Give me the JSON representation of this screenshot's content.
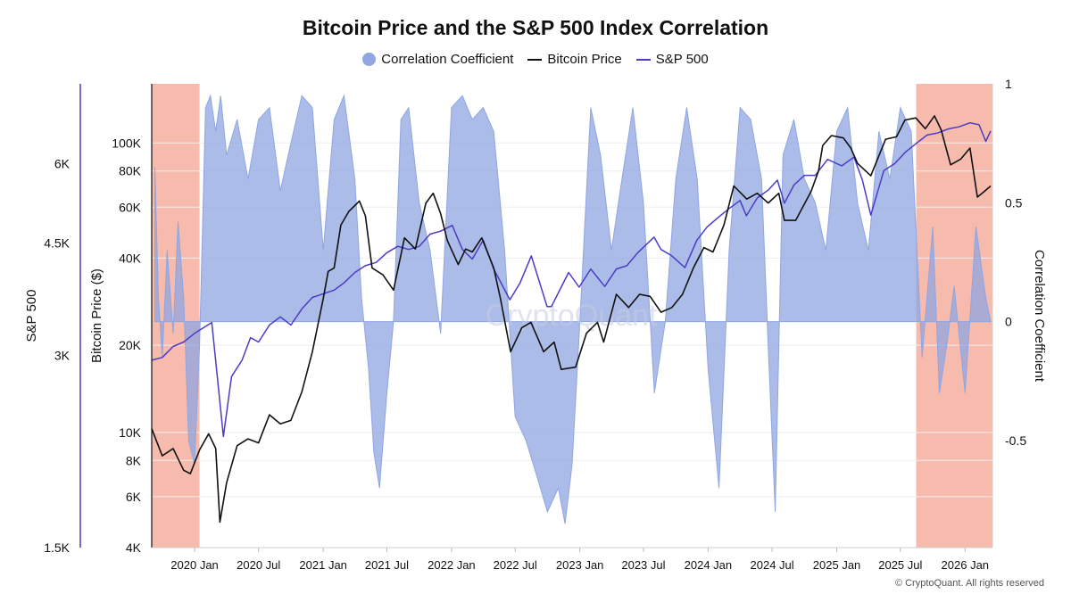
{
  "page": {
    "footer": "© CryptoQuant. All rights reserved",
    "watermark": "CryptoQuant"
  },
  "colors": {
    "correlation": "#8fa6e2",
    "bitcoin": "#111111",
    "sp500": "#4b3cc4",
    "shade": "#f4a493",
    "sp_axis": "#4b3cc4"
  },
  "chart_data": {
    "type": "line",
    "title": "Bitcoin Price and the S&P 500 Index Correlation",
    "legend": [
      {
        "name": "Correlation Coefficient",
        "style": "dot",
        "color": "#8fa6e2"
      },
      {
        "name": "Bitcoin Price",
        "style": "line",
        "color": "#111111"
      },
      {
        "name": "S&P 500",
        "style": "line",
        "color": "#4b3cc4"
      }
    ],
    "axes": {
      "sp500": {
        "label": "S&P 500",
        "scale": "log",
        "range": [
          1500,
          8000
        ],
        "ticks": [
          1500,
          3000,
          4500,
          6000
        ],
        "tick_labels": [
          "1.5K",
          "3K",
          "4.5K",
          "6K"
        ]
      },
      "bitcoin": {
        "label": "Bitcoin Price ($)",
        "scale": "log",
        "range": [
          4000,
          160000
        ],
        "ticks": [
          4000,
          6000,
          8000,
          10000,
          20000,
          40000,
          60000,
          80000,
          100000
        ],
        "tick_labels": [
          "4K",
          "6K",
          "8K",
          "10K",
          "20K",
          "40K",
          "60K",
          "80K",
          "100K"
        ]
      },
      "correlation": {
        "label": "Correlation Coefficient",
        "range": [
          -0.95,
          1.0
        ],
        "ticks": [
          -0.5,
          0,
          0.5,
          1
        ],
        "tick_labels": [
          "-0.5",
          "0",
          "0.5",
          "1"
        ]
      },
      "x": {
        "range": [
          "2019-09-01",
          "2026-03-20"
        ],
        "ticks": [
          "2020-01-01",
          "2020-07-01",
          "2021-01-01",
          "2021-07-01",
          "2022-01-01",
          "2022-07-01",
          "2023-01-01",
          "2023-07-01",
          "2024-01-01",
          "2024-07-01",
          "2025-01-01",
          "2025-07-01",
          "2026-01-01"
        ],
        "tick_labels": [
          "2020 Jan",
          "2020 Jul",
          "2021 Jan",
          "2021 Jul",
          "2022 Jan",
          "2022 Jul",
          "2023 Jan",
          "2023 Jul",
          "2024 Jan",
          "2024 Jul",
          "2025 Jan",
          "2025 Jul",
          "2026 Jan"
        ]
      }
    },
    "shaded_periods": [
      [
        "2019-09-01",
        "2020-01-15"
      ],
      [
        "2025-08-15",
        "2026-03-20"
      ]
    ],
    "series": [
      {
        "name": "Correlation Coefficient",
        "x": [
          "2019-09-10",
          "2019-09-20",
          "2019-10-01",
          "2019-10-15",
          "2019-11-01",
          "2019-11-15",
          "2019-12-01",
          "2019-12-15",
          "2020-01-01",
          "2020-01-15",
          "2020-02-01",
          "2020-02-15",
          "2020-03-01",
          "2020-03-15",
          "2020-04-01",
          "2020-05-01",
          "2020-06-01",
          "2020-07-01",
          "2020-08-01",
          "2020-09-01",
          "2020-10-01",
          "2020-11-01",
          "2020-12-01",
          "2021-01-01",
          "2021-02-01",
          "2021-03-01",
          "2021-04-01",
          "2021-04-20",
          "2021-05-10",
          "2021-05-25",
          "2021-06-10",
          "2021-07-01",
          "2021-07-20",
          "2021-08-10",
          "2021-09-01",
          "2021-10-01",
          "2021-11-01",
          "2021-12-01",
          "2022-01-01",
          "2022-02-01",
          "2022-03-01",
          "2022-04-01",
          "2022-05-01",
          "2022-06-01",
          "2022-07-01",
          "2022-08-01",
          "2022-09-01",
          "2022-10-01",
          "2022-11-01",
          "2022-11-20",
          "2022-12-10",
          "2023-01-01",
          "2023-02-01",
          "2023-03-01",
          "2023-04-01",
          "2023-05-01",
          "2023-06-01",
          "2023-07-01",
          "2023-08-01",
          "2023-09-01",
          "2023-10-01",
          "2023-11-01",
          "2023-12-01",
          "2024-01-01",
          "2024-02-01",
          "2024-03-01",
          "2024-04-01",
          "2024-05-01",
          "2024-06-01",
          "2024-06-20",
          "2024-07-10",
          "2024-08-01",
          "2024-09-01",
          "2024-10-01",
          "2024-11-01",
          "2024-12-01",
          "2025-01-01",
          "2025-02-01",
          "2025-03-01",
          "2025-04-01",
          "2025-05-01",
          "2025-06-01",
          "2025-07-01",
          "2025-08-01",
          "2025-09-01",
          "2025-10-01",
          "2025-10-20",
          "2025-11-10",
          "2025-12-01",
          "2026-01-01",
          "2026-02-01",
          "2026-03-01",
          "2026-03-15"
        ],
        "values": [
          0.65,
          0.1,
          -0.15,
          0.3,
          -0.05,
          0.42,
          0.1,
          -0.5,
          -0.6,
          -0.1,
          0.9,
          0.95,
          0.8,
          0.95,
          0.7,
          0.85,
          0.6,
          0.85,
          0.9,
          0.55,
          0.75,
          0.95,
          0.9,
          0.3,
          0.85,
          0.95,
          0.6,
          0.1,
          -0.2,
          -0.55,
          -0.7,
          -0.3,
          0.0,
          0.85,
          0.9,
          0.5,
          0.3,
          -0.05,
          0.9,
          0.95,
          0.85,
          0.9,
          0.8,
          0.3,
          -0.4,
          -0.5,
          -0.65,
          -0.8,
          -0.7,
          -0.85,
          -0.6,
          0.0,
          0.9,
          0.7,
          0.3,
          0.6,
          0.9,
          0.5,
          -0.3,
          0.0,
          0.6,
          0.9,
          0.6,
          -0.2,
          -0.7,
          0.3,
          0.9,
          0.85,
          0.6,
          -0.1,
          -0.8,
          0.7,
          0.85,
          0.6,
          0.5,
          0.3,
          0.8,
          0.9,
          0.5,
          0.3,
          0.8,
          0.6,
          0.9,
          0.8,
          -0.15,
          0.4,
          -0.3,
          -0.1,
          0.15,
          -0.3,
          0.4,
          0.1,
          0.0
        ]
      },
      {
        "name": "Bitcoin Price",
        "x": [
          "2019-09-01",
          "2019-10-01",
          "2019-11-01",
          "2019-12-01",
          "2019-12-20",
          "2020-01-15",
          "2020-02-10",
          "2020-03-01",
          "2020-03-13",
          "2020-04-01",
          "2020-05-01",
          "2020-06-01",
          "2020-07-01",
          "2020-08-01",
          "2020-09-01",
          "2020-10-01",
          "2020-11-01",
          "2020-12-01",
          "2021-01-01",
          "2021-01-15",
          "2021-02-01",
          "2021-02-20",
          "2021-03-15",
          "2021-04-14",
          "2021-05-01",
          "2021-05-20",
          "2021-06-20",
          "2021-07-20",
          "2021-08-20",
          "2021-09-20",
          "2021-10-20",
          "2021-11-10",
          "2021-12-01",
          "2021-12-20",
          "2022-01-20",
          "2022-02-10",
          "2022-03-01",
          "2022-03-28",
          "2022-05-01",
          "2022-05-20",
          "2022-06-18",
          "2022-07-20",
          "2022-08-15",
          "2022-09-20",
          "2022-10-20",
          "2022-11-09",
          "2022-12-20",
          "2023-01-20",
          "2023-02-20",
          "2023-03-10",
          "2023-04-15",
          "2023-05-20",
          "2023-06-20",
          "2023-07-20",
          "2023-08-20",
          "2023-09-20",
          "2023-10-20",
          "2023-11-20",
          "2023-12-20",
          "2024-01-15",
          "2024-02-15",
          "2024-03-14",
          "2024-04-20",
          "2024-05-20",
          "2024-06-20",
          "2024-07-20",
          "2024-08-05",
          "2024-09-06",
          "2024-10-20",
          "2024-11-10",
          "2024-11-22",
          "2024-12-17",
          "2025-01-20",
          "2025-02-10",
          "2025-03-01",
          "2025-04-08",
          "2025-05-20",
          "2025-06-20",
          "2025-07-14",
          "2025-08-14",
          "2025-09-10",
          "2025-10-06",
          "2025-10-25",
          "2025-11-21",
          "2025-12-20",
          "2026-01-15",
          "2026-02-05",
          "2026-02-25",
          "2026-03-15"
        ],
        "values": [
          10300,
          8300,
          8800,
          7400,
          7200,
          8700,
          9900,
          8800,
          4900,
          6700,
          9000,
          9500,
          9200,
          11500,
          10700,
          11000,
          13800,
          19000,
          29000,
          36000,
          37000,
          52000,
          58000,
          63000,
          56000,
          37000,
          35000,
          31000,
          47000,
          43000,
          62000,
          67000,
          57000,
          46000,
          38000,
          43000,
          42000,
          47000,
          37000,
          29000,
          19000,
          23000,
          24000,
          19000,
          20500,
          16500,
          16800,
          22000,
          24000,
          20500,
          30000,
          27000,
          30000,
          29500,
          26000,
          27000,
          30000,
          37000,
          43500,
          42000,
          52000,
          71000,
          64000,
          67000,
          62000,
          67000,
          54000,
          54000,
          68000,
          80000,
          98000,
          106000,
          104000,
          96000,
          85000,
          77000,
          103000,
          105000,
          120000,
          122000,
          112000,
          124000,
          111000,
          84000,
          88000,
          96000,
          65000,
          68000,
          71000
        ]
      },
      {
        "name": "S&P 500",
        "x": [
          "2019-09-01",
          "2019-10-01",
          "2019-11-01",
          "2019-12-01",
          "2020-01-01",
          "2020-02-19",
          "2020-03-23",
          "2020-04-15",
          "2020-05-15",
          "2020-06-08",
          "2020-07-01",
          "2020-08-01",
          "2020-09-01",
          "2020-10-01",
          "2020-11-01",
          "2020-12-01",
          "2021-01-01",
          "2021-02-01",
          "2021-03-01",
          "2021-04-01",
          "2021-05-01",
          "2021-06-01",
          "2021-07-01",
          "2021-08-01",
          "2021-09-01",
          "2021-10-01",
          "2021-11-01",
          "2021-12-01",
          "2022-01-03",
          "2022-02-01",
          "2022-03-01",
          "2022-04-01",
          "2022-05-01",
          "2022-06-16",
          "2022-07-15",
          "2022-08-16",
          "2022-09-30",
          "2022-10-12",
          "2022-11-30",
          "2022-12-30",
          "2023-02-01",
          "2023-03-13",
          "2023-04-15",
          "2023-05-15",
          "2023-06-15",
          "2023-07-31",
          "2023-08-20",
          "2023-09-20",
          "2023-10-27",
          "2023-11-30",
          "2023-12-29",
          "2024-02-01",
          "2024-03-01",
          "2024-04-01",
          "2024-04-19",
          "2024-05-20",
          "2024-06-20",
          "2024-07-16",
          "2024-08-05",
          "2024-09-01",
          "2024-10-01",
          "2024-11-01",
          "2024-12-06",
          "2025-01-15",
          "2025-02-19",
          "2025-03-15",
          "2025-04-08",
          "2025-05-15",
          "2025-06-15",
          "2025-07-15",
          "2025-08-15",
          "2025-09-15",
          "2025-10-15",
          "2025-11-15",
          "2025-12-15",
          "2026-01-15",
          "2026-02-10",
          "2026-03-01",
          "2026-03-15"
        ],
        "values": [
          2950,
          2980,
          3100,
          3150,
          3250,
          3380,
          2240,
          2780,
          2950,
          3200,
          3150,
          3350,
          3450,
          3350,
          3550,
          3700,
          3750,
          3800,
          3900,
          4050,
          4150,
          4200,
          4350,
          4450,
          4400,
          4450,
          4650,
          4700,
          4800,
          4400,
          4250,
          4550,
          4100,
          3670,
          3900,
          4300,
          3580,
          3580,
          4050,
          3840,
          4100,
          3850,
          4100,
          4150,
          4350,
          4600,
          4400,
          4300,
          4120,
          4550,
          4770,
          4950,
          5100,
          5250,
          4970,
          5300,
          5450,
          5650,
          5200,
          5550,
          5750,
          5750,
          6090,
          5950,
          6140,
          5650,
          4980,
          5850,
          6000,
          6250,
          6450,
          6650,
          6700,
          6800,
          6850,
          6950,
          6900,
          6500,
          6750
        ]
      }
    ]
  }
}
